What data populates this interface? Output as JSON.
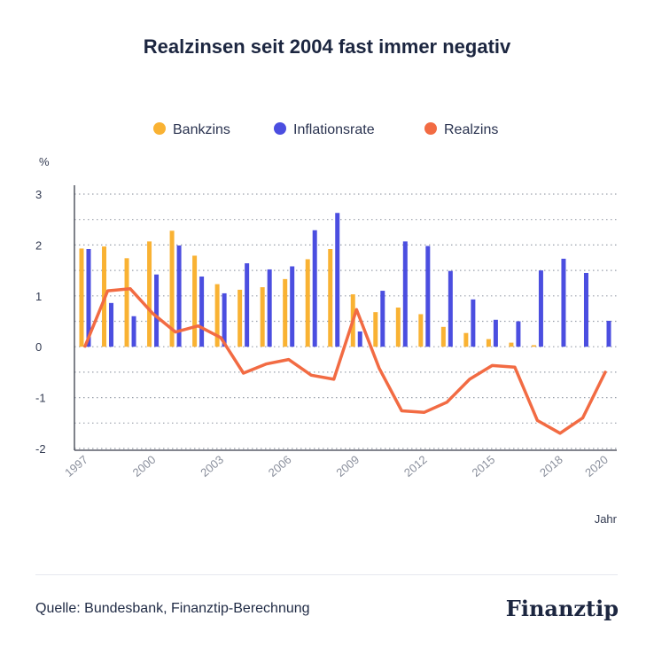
{
  "chart_data": {
    "type": "bar",
    "title": "Realzinsen seit 2004 fast immer negativ",
    "ylabel": "%",
    "xlabel": "Jahr",
    "ylim": [
      -2,
      3
    ],
    "yticks": [
      3,
      2,
      1,
      0,
      -1,
      -2
    ],
    "x": [
      1997,
      1998,
      1999,
      2000,
      2001,
      2002,
      2003,
      2004,
      2005,
      2006,
      2007,
      2008,
      2009,
      2010,
      2011,
      2012,
      2013,
      2014,
      2015,
      2016,
      2017,
      2018,
      2019,
      2020
    ],
    "xtick_labels": [
      "1997",
      "2000",
      "2003",
      "2006",
      "2009",
      "2012",
      "2015",
      "2018",
      "2020"
    ],
    "series": [
      {
        "name": "Bankzins",
        "type": "bar",
        "color": "#f9b233",
        "values": [
          1.93,
          1.97,
          1.74,
          2.07,
          2.28,
          1.79,
          1.23,
          1.12,
          1.17,
          1.33,
          1.72,
          1.92,
          1.03,
          0.68,
          0.77,
          0.64,
          0.39,
          0.27,
          0.15,
          0.08,
          0.03,
          0.0,
          0.0,
          0.0
        ]
      },
      {
        "name": "Inflationsrate",
        "type": "bar",
        "color": "#4b4ee0",
        "values": [
          1.92,
          0.86,
          0.6,
          1.42,
          1.99,
          1.38,
          1.05,
          1.64,
          1.52,
          1.58,
          2.29,
          2.63,
          0.3,
          1.1,
          2.07,
          1.98,
          1.49,
          0.93,
          0.53,
          0.5,
          1.5,
          1.73,
          1.45,
          0.51
        ]
      },
      {
        "name": "Realzins",
        "type": "line",
        "color": "#f26b43",
        "values": [
          0.01,
          1.1,
          1.14,
          0.65,
          0.29,
          0.41,
          0.18,
          -0.52,
          -0.34,
          -0.25,
          -0.56,
          -0.64,
          0.73,
          -0.42,
          -1.26,
          -1.29,
          -1.09,
          -0.64,
          -0.37,
          -0.4,
          -1.45,
          -1.7,
          -1.4,
          -0.5
        ]
      }
    ],
    "legend": "top-center",
    "grid": "horizontal dotted"
  },
  "footer": {
    "source": "Quelle: Bundesbank, Finanztip-Berechnung",
    "brand": "Finanztip"
  }
}
